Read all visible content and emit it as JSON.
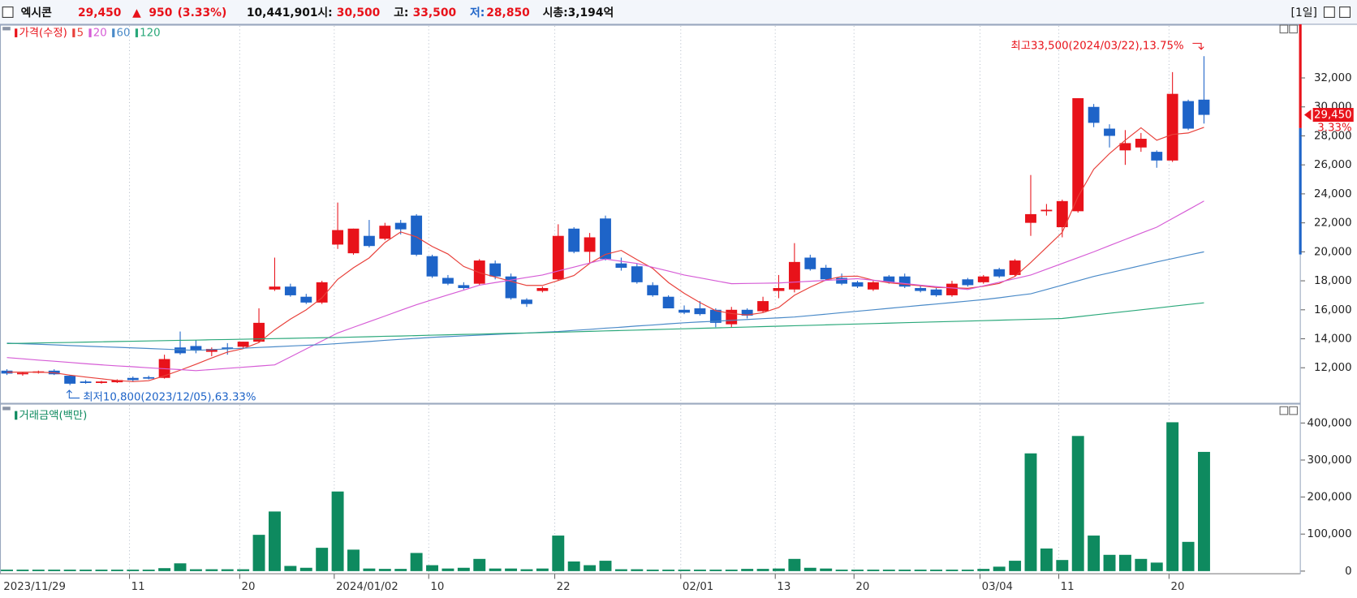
{
  "header": {
    "name": "엑시콘",
    "price": "29,450",
    "arrow": "▲",
    "change": "950",
    "change_pct": "(3.33%)",
    "volume": "10,441,901",
    "open_label": "시:",
    "open": "30,500",
    "high_label": "고:",
    "high": "33,500",
    "low_label": "저:",
    "low": "28,850",
    "market_cap": "시총:3,194억",
    "period": "[1일]"
  },
  "chart_data": [
    {
      "type": "candlestick",
      "legend_title": "가격(수정)",
      "up_color": "#e8121a",
      "down_color": "#1e64c8",
      "categories": [
        "2023/11/29",
        null,
        null,
        null,
        null,
        null,
        null,
        null,
        "11",
        null,
        null,
        null,
        null,
        null,
        null,
        "20",
        null,
        null,
        null,
        null,
        null,
        "2024/01/02",
        null,
        null,
        null,
        null,
        null,
        "10",
        null,
        null,
        null,
        null,
        null,
        null,
        null,
        "22",
        null,
        null,
        null,
        null,
        null,
        null,
        null,
        "02/01",
        null,
        null,
        null,
        null,
        null,
        "13",
        null,
        null,
        null,
        null,
        "20",
        null,
        null,
        null,
        null,
        null,
        null,
        null,
        "03/04",
        null,
        null,
        null,
        null,
        "11",
        null,
        null,
        null,
        null,
        null,
        null,
        "20",
        null,
        null
      ],
      "open": [
        11800,
        11550,
        11650,
        11800,
        11450,
        11050,
        10950,
        11000,
        11300,
        11350,
        11300,
        13400,
        13500,
        13100,
        13400,
        13450,
        13800,
        17400,
        17600,
        16900,
        16500,
        20500,
        19900,
        21100,
        20900,
        22000,
        22500,
        19700,
        18200,
        17700,
        17800,
        19200,
        18300,
        16700,
        17300,
        18100,
        21600,
        20000,
        22300,
        19200,
        19000,
        17700,
        16900,
        16000,
        16100,
        16000,
        15000,
        16000,
        15900,
        17300,
        17400,
        19600,
        18900,
        18200,
        17900,
        17400,
        18300,
        18300,
        17500,
        17400,
        17000,
        18100,
        17900,
        18800,
        18400,
        22000,
        22800,
        21700,
        22800,
        30000,
        28500,
        27000,
        27200,
        26900,
        26300,
        30400,
        30500
      ],
      "high": [
        11900,
        11700,
        11800,
        11900,
        11500,
        11150,
        11100,
        11200,
        11400,
        11450,
        12900,
        14500,
        13900,
        13400,
        13700,
        13800,
        16100,
        19600,
        17800,
        17100,
        18000,
        23400,
        21600,
        22200,
        22000,
        22200,
        22600,
        19800,
        18400,
        17900,
        19500,
        19400,
        18500,
        16800,
        17600,
        21900,
        21700,
        21300,
        22500,
        19600,
        19200,
        17900,
        17000,
        16300,
        16600,
        16100,
        16200,
        16100,
        16900,
        18400,
        20600,
        19800,
        19100,
        18500,
        18000,
        18000,
        18400,
        18500,
        17700,
        17500,
        18000,
        18200,
        18400,
        18900,
        19500,
        25300,
        23300,
        23600,
        30600,
        30200,
        28800,
        28400,
        28200,
        27000,
        32400,
        30500,
        33500
      ],
      "low": [
        11500,
        11450,
        11600,
        11500,
        10800,
        10900,
        10900,
        10950,
        11050,
        11200,
        11250,
        12900,
        13000,
        12800,
        12900,
        13350,
        13750,
        17300,
        16900,
        16400,
        16400,
        20200,
        19800,
        20300,
        20800,
        21200,
        19700,
        18200,
        17700,
        17400,
        17700,
        18100,
        16700,
        16200,
        17200,
        18000,
        19900,
        19200,
        19400,
        18700,
        17800,
        16900,
        16100,
        15700,
        15600,
        14800,
        14800,
        15400,
        15800,
        16800,
        17200,
        18700,
        18000,
        17700,
        17500,
        17300,
        17800,
        17500,
        17200,
        16900,
        16900,
        17600,
        17800,
        18200,
        18300,
        21100,
        22500,
        21000,
        22700,
        28600,
        27200,
        26000,
        26900,
        25800,
        26200,
        28400,
        28850
      ],
      "close": [
        11600,
        11650,
        11750,
        11550,
        10900,
        10950,
        11050,
        11150,
        11150,
        11250,
        12600,
        13000,
        13200,
        13300,
        13300,
        13800,
        15100,
        17600,
        17000,
        16500,
        17900,
        21500,
        21600,
        20400,
        21800,
        21550,
        19800,
        18300,
        17800,
        17500,
        19400,
        18300,
        16800,
        16400,
        17500,
        21100,
        20000,
        21000,
        19500,
        18900,
        17900,
        17000,
        16100,
        15800,
        15700,
        15100,
        16000,
        15600,
        16600,
        17500,
        19300,
        18800,
        18100,
        17800,
        17600,
        17900,
        17900,
        17600,
        17300,
        17000,
        17800,
        17700,
        18300,
        18300,
        19400,
        22600,
        22900,
        23500,
        30600,
        28900,
        28000,
        27500,
        27800,
        26300,
        30900,
        28500,
        29450
      ],
      "series": [
        {
          "name": "5",
          "color": "#e8403a",
          "values": [
            11700,
            11700,
            11700,
            11650,
            11490,
            11360,
            11240,
            11120,
            11040,
            11110,
            11440,
            11830,
            12240,
            12670,
            13080,
            13320,
            13740,
            14620,
            15360,
            16000,
            16820,
            18100,
            18900,
            19580,
            20640,
            21370,
            21030,
            20370,
            19850,
            18990,
            18560,
            18260,
            17960,
            17680,
            17680,
            18020,
            18360,
            19200,
            19820,
            20100,
            19460,
            18860,
            17880,
            17140,
            16500,
            15940,
            15740,
            15640,
            15800,
            16160,
            17000,
            17560,
            18060,
            18300,
            18320,
            18040,
            17860,
            17760,
            17660,
            17540,
            17520,
            17480,
            17620,
            17820,
            18300,
            19260,
            20300,
            21340,
            23800,
            25700,
            26780,
            27700,
            28560,
            27700,
            28100,
            28200,
            28590
          ]
        },
        {
          "name": "20",
          "color": "#d65cd6",
          "values": [
            12700,
            12620,
            12530,
            12450,
            12370,
            12280,
            12200,
            12130,
            12070,
            12000,
            11930,
            11870,
            11800,
            11880,
            11960,
            12040,
            12120,
            12200,
            12750,
            13300,
            13850,
            14400,
            14790,
            15180,
            15570,
            15960,
            16350,
            16690,
            17030,
            17360,
            17700,
            17880,
            18050,
            18230,
            18400,
            18680,
            18950,
            19230,
            19500,
            19350,
            19200,
            18930,
            18670,
            18400,
            18200,
            18000,
            17800,
            17820,
            17830,
            17850,
            17910,
            17970,
            18030,
            18090,
            18150,
            18040,
            17930,
            17810,
            17700,
            17600,
            17500,
            17400,
            17650,
            17900,
            18150,
            18400,
            18800,
            19200,
            19600,
            20000,
            20430,
            20850,
            21280,
            21700,
            22300,
            22900,
            23500
          ]
        },
        {
          "name": "60",
          "color": "#4a8ac8",
          "values": [
            13700,
            13660,
            13620,
            13580,
            13530,
            13490,
            13450,
            13410,
            13370,
            13330,
            13280,
            13240,
            13200,
            13250,
            13300,
            13350,
            13400,
            13450,
            13500,
            13550,
            13600,
            13670,
            13740,
            13810,
            13890,
            13960,
            14030,
            14100,
            14150,
            14200,
            14250,
            14300,
            14350,
            14400,
            14450,
            14500,
            14580,
            14650,
            14730,
            14800,
            14880,
            14950,
            15030,
            15100,
            15160,
            15210,
            15270,
            15330,
            15390,
            15440,
            15500,
            15600,
            15700,
            15800,
            15900,
            16000,
            16100,
            16200,
            16300,
            16400,
            16500,
            16600,
            16700,
            16830,
            16970,
            17100,
            17400,
            17700,
            18000,
            18300,
            18550,
            18800,
            19050,
            19300,
            19530,
            19770,
            20000
          ]
        },
        {
          "name": "120",
          "color": "#2aa87a",
          "values": [
            13670,
            13690,
            13710,
            13730,
            13750,
            13770,
            13790,
            13810,
            13830,
            13850,
            13870,
            13890,
            13910,
            13930,
            13950,
            13970,
            13990,
            14010,
            14030,
            14050,
            14070,
            14090,
            14120,
            14140,
            14170,
            14190,
            14220,
            14250,
            14270,
            14300,
            14320,
            14350,
            14380,
            14400,
            14430,
            14450,
            14480,
            14510,
            14540,
            14570,
            14600,
            14630,
            14660,
            14690,
            14720,
            14750,
            14780,
            14810,
            14840,
            14870,
            14900,
            14930,
            14960,
            14990,
            15020,
            15050,
            15080,
            15110,
            15140,
            15170,
            15190,
            15220,
            15250,
            15280,
            15310,
            15340,
            15370,
            15400,
            15520,
            15640,
            15760,
            15880,
            16000,
            16120,
            16240,
            16360,
            16480
          ]
        }
      ],
      "ylim": [
        9610,
        35580
      ],
      "yticks": [
        {
          "value": 12000,
          "label": "12,000"
        },
        {
          "value": 14000,
          "label": "14,000"
        },
        {
          "value": 16000,
          "label": "16,000"
        },
        {
          "value": 18000,
          "label": "18,000"
        },
        {
          "value": 20000,
          "label": "20,000"
        },
        {
          "value": 22000,
          "label": "22,000"
        },
        {
          "value": 24000,
          "label": "24,000"
        },
        {
          "value": 26000,
          "label": "26,000"
        },
        {
          "value": 28000,
          "label": "28,000"
        },
        {
          "value": 30000,
          "label": "30,000"
        },
        {
          "value": 32000,
          "label": "32,000"
        }
      ],
      "annotations": [
        "최고33,500(2024/03/22),13.75%",
        "최저10,800(2023/12/05),63.33%"
      ],
      "price_tag": {
        "value": 29450,
        "label": "29,450",
        "change_label": "3.33%"
      }
    },
    {
      "type": "bar",
      "title": "거래금액(백만)",
      "color": "#0e8a5f",
      "values": [
        4000,
        4000,
        4000,
        4000,
        4000,
        4000,
        4000,
        4000,
        4000,
        4000,
        8000,
        21000,
        5000,
        5000,
        5000,
        5000,
        98000,
        161000,
        14000,
        9000,
        63000,
        215000,
        58000,
        7000,
        6000,
        6000,
        49000,
        16000,
        7000,
        9000,
        33000,
        7000,
        7000,
        5000,
        7000,
        96000,
        26000,
        16000,
        28000,
        5000,
        5000,
        4000,
        4000,
        4000,
        4000,
        4000,
        4000,
        6000,
        6000,
        7000,
        33000,
        9000,
        7000,
        4000,
        4000,
        4000,
        4000,
        4000,
        4000,
        4000,
        4000,
        4000,
        6000,
        12000,
        28000,
        318000,
        61000,
        30000,
        365000,
        96000,
        44000,
        44000,
        33000,
        23000,
        402000,
        79000,
        322000
      ],
      "ylim": [
        -7000,
        444000
      ],
      "yticks": [
        0,
        {
          "value": 100000,
          "label": "100,000"
        },
        {
          "value": 200000,
          "label": "200,000"
        },
        {
          "value": 300000,
          "label": "300,000"
        },
        {
          "value": 400000,
          "label": "400,000"
        }
      ]
    }
  ]
}
